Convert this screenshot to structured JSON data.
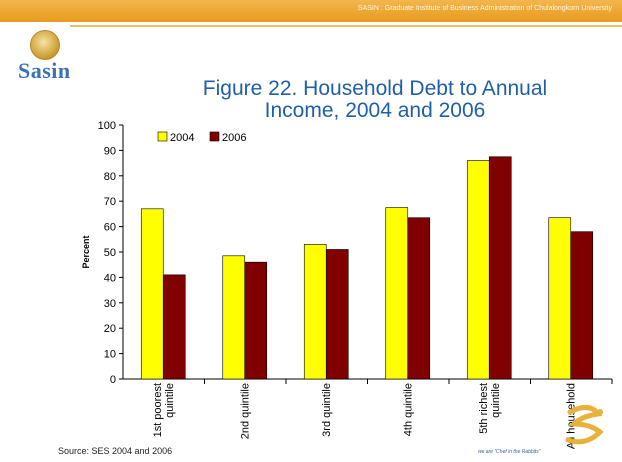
{
  "header": {
    "text": "SASIN : Graduate Institute of Business Administration of Chulalongkorn University"
  },
  "logo": {
    "text": "Sasin"
  },
  "source_note": "Source: SES 2004 and 2006",
  "slogan": "we are \"Chef in the Rabbits\"",
  "colors": {
    "series_2004": "#ffff00",
    "series_2006": "#800000",
    "title": "#1f5fa8",
    "header": "#e79a1f"
  },
  "chart_data": {
    "type": "bar",
    "title_lines": [
      "Figure 22. Household Debt to Annual",
      "Income, 2004 and 2006"
    ],
    "xlabel": "",
    "ylabel": "Percent",
    "ylim": [
      0,
      100
    ],
    "yticks": [
      0,
      10,
      20,
      30,
      40,
      50,
      60,
      70,
      80,
      90,
      100
    ],
    "legend_position": "top-left",
    "grid": false,
    "categories": [
      [
        "1st poorest",
        "quintile"
      ],
      [
        "2nd quintile"
      ],
      [
        "3rd quintile"
      ],
      [
        "4th quintile"
      ],
      [
        "5th richest",
        "quintile"
      ],
      [
        "All household"
      ]
    ],
    "series": [
      {
        "name": "2004",
        "color": "#ffff00",
        "values": [
          67,
          48.5,
          53,
          67.5,
          86,
          63.5
        ]
      },
      {
        "name": "2006",
        "color": "#800000",
        "values": [
          41,
          46,
          51,
          63.5,
          87.5,
          58
        ]
      }
    ]
  }
}
